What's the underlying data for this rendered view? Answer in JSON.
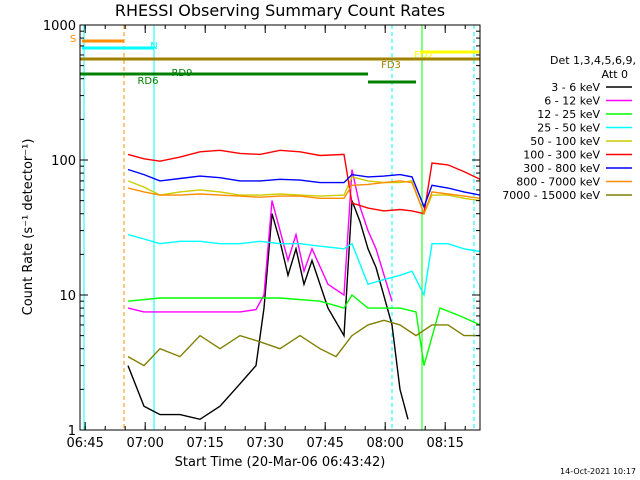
{
  "chart_data": {
    "type": "line",
    "title": "RHESSI Observing Summary Count Rates",
    "xlabel": "Start Time (20-Mar-06 06:43:42)",
    "ylabel": "Count Rate (s⁻¹ detector⁻¹)",
    "yscale": "log",
    "ylim": [
      1,
      1000
    ],
    "xlim_minutes": [
      0,
      100
    ],
    "x_tick_labels": [
      "06:45",
      "07:00",
      "07:15",
      "07:30",
      "07:45",
      "08:00",
      "08:15"
    ],
    "x_tick_minutes": [
      1.3,
      16.3,
      31.3,
      46.3,
      61.3,
      76.3,
      91.3
    ],
    "y_tick_labels": [
      "1",
      "10",
      "100",
      "1000"
    ],
    "y_tick_values": [
      1,
      10,
      100,
      1000
    ],
    "timestamp": "14-Oct-2021 10:17",
    "legend": {
      "header_line1": "Det 1,3,4,5,6,9,",
      "header_line2": "Att 0",
      "placement": "right"
    },
    "flags": [
      {
        "label": "S",
        "color": "#ff8c00",
        "segments": [
          [
            0.5,
            11
          ]
        ]
      },
      {
        "label": "N",
        "color": "#00ffff",
        "segments": [
          [
            0.5,
            18.5
          ]
        ]
      },
      {
        "label": "FD2",
        "color": "#ffff00",
        "segments": [
          [
            85,
            100
          ]
        ]
      },
      {
        "label": "FD3",
        "color": "#a08000",
        "segments": [
          [
            0,
            100
          ]
        ]
      },
      {
        "label": "RD6",
        "color": "#008000",
        "segments": [
          [
            0,
            72
          ]
        ]
      },
      {
        "label": "RD9",
        "color": "#008000",
        "segments": [
          [
            72,
            84
          ]
        ]
      }
    ],
    "vlines": [
      {
        "minutes": 1.0,
        "color": "#00ffff"
      },
      {
        "minutes": 11.0,
        "color": "#ff8c00"
      },
      {
        "minutes": 18.5,
        "color": "#00ffff"
      },
      {
        "minutes": 78.0,
        "color": "#00ffff"
      },
      {
        "minutes": 85.5,
        "color": "#00ff00"
      },
      {
        "minutes": 98.5,
        "color": "#00ffff"
      }
    ],
    "series": [
      {
        "name": "3 - 6 keV",
        "color": "#000000",
        "x": [
          12,
          16,
          20,
          25,
          30,
          35,
          40,
          44,
          46,
          48,
          50,
          52,
          54,
          56,
          58,
          62,
          66,
          68,
          70,
          72,
          74,
          78,
          80,
          82
        ],
        "y": [
          3,
          1.5,
          1.3,
          1.3,
          1.2,
          1.5,
          2.2,
          3,
          8,
          40,
          25,
          14,
          22,
          12,
          18,
          8,
          5,
          50,
          35,
          22,
          16,
          6,
          2,
          1.2
        ]
      },
      {
        "name": "6 - 12 keV",
        "color": "#ff00ff",
        "x": [
          12,
          16,
          20,
          25,
          30,
          35,
          40,
          44,
          46,
          48,
          50,
          52,
          54,
          56,
          58,
          62,
          66,
          68,
          70,
          72,
          74,
          78
        ],
        "y": [
          8,
          7.5,
          7.5,
          7.5,
          7.5,
          7.5,
          7.5,
          7.8,
          10,
          50,
          30,
          18,
          28,
          15,
          22,
          12,
          10,
          85,
          45,
          30,
          22,
          9
        ]
      },
      {
        "name": "12 - 25 keV",
        "color": "#00ff00",
        "x": [
          12,
          20,
          30,
          40,
          50,
          60,
          66,
          68,
          72,
          76,
          80,
          84,
          86,
          90,
          95,
          100
        ],
        "y": [
          9,
          9.5,
          9.5,
          9.5,
          9.5,
          9,
          8,
          10,
          8,
          8,
          8,
          7.5,
          3,
          8,
          7,
          6
        ]
      },
      {
        "name": "25 - 50 keV",
        "color": "#00ffff",
        "x": [
          12,
          16,
          20,
          25,
          30,
          35,
          40,
          45,
          50,
          55,
          60,
          66,
          68,
          72,
          76,
          80,
          83,
          86,
          88,
          92,
          96,
          100
        ],
        "y": [
          28,
          26,
          24,
          25,
          25,
          24,
          24,
          25,
          24,
          24,
          23,
          22,
          24,
          12,
          13,
          14,
          15,
          10,
          24,
          24,
          22,
          21
        ]
      },
      {
        "name": "50 - 100 keV",
        "color": "#cccc00",
        "x": [
          12,
          16,
          20,
          25,
          30,
          35,
          40,
          45,
          50,
          55,
          60,
          66,
          68,
          72,
          76,
          80,
          83,
          86,
          88,
          92,
          96,
          100
        ],
        "y": [
          70,
          63,
          55,
          58,
          60,
          58,
          55,
          55,
          56,
          55,
          54,
          55,
          75,
          70,
          68,
          68,
          70,
          40,
          55,
          55,
          52,
          50
        ]
      },
      {
        "name": "100 - 300 keV",
        "color": "#ff0000",
        "x": [
          12,
          16,
          20,
          25,
          30,
          35,
          40,
          45,
          50,
          55,
          60,
          66,
          68,
          72,
          76,
          80,
          83,
          86,
          88,
          92,
          96,
          100
        ],
        "y": [
          110,
          102,
          98,
          105,
          115,
          118,
          112,
          110,
          118,
          115,
          108,
          110,
          48,
          44,
          42,
          43,
          42,
          40,
          95,
          92,
          82,
          72
        ]
      },
      {
        "name": "300 - 800 keV",
        "color": "#0000ff",
        "x": [
          12,
          16,
          20,
          25,
          30,
          35,
          40,
          45,
          50,
          55,
          60,
          66,
          68,
          72,
          76,
          80,
          83,
          86,
          88,
          92,
          96,
          100
        ],
        "y": [
          85,
          78,
          70,
          73,
          76,
          74,
          70,
          70,
          72,
          71,
          68,
          68,
          78,
          75,
          76,
          78,
          75,
          45,
          65,
          62,
          58,
          55
        ]
      },
      {
        "name": "800 - 7000 keV",
        "color": "#ff8c00",
        "x": [
          12,
          16,
          20,
          25,
          30,
          35,
          40,
          45,
          50,
          55,
          60,
          66,
          68,
          72,
          76,
          80,
          83,
          86,
          88,
          92,
          96,
          100
        ],
        "y": [
          62,
          58,
          55,
          55,
          56,
          55,
          54,
          53,
          54,
          54,
          52,
          52,
          65,
          66,
          68,
          70,
          68,
          40,
          58,
          56,
          54,
          52
        ]
      },
      {
        "name": "7000 - 15000 keV",
        "color": "#808000",
        "x": [
          12,
          16,
          20,
          25,
          30,
          35,
          40,
          45,
          50,
          55,
          60,
          64,
          68,
          72,
          76,
          80,
          84,
          88,
          92,
          96,
          100
        ],
        "y": [
          3.5,
          3,
          4,
          3.5,
          5,
          4,
          5,
          4.5,
          4,
          5,
          4,
          3.5,
          5,
          6,
          6.5,
          6,
          5,
          6,
          6,
          5,
          5
        ]
      }
    ]
  }
}
